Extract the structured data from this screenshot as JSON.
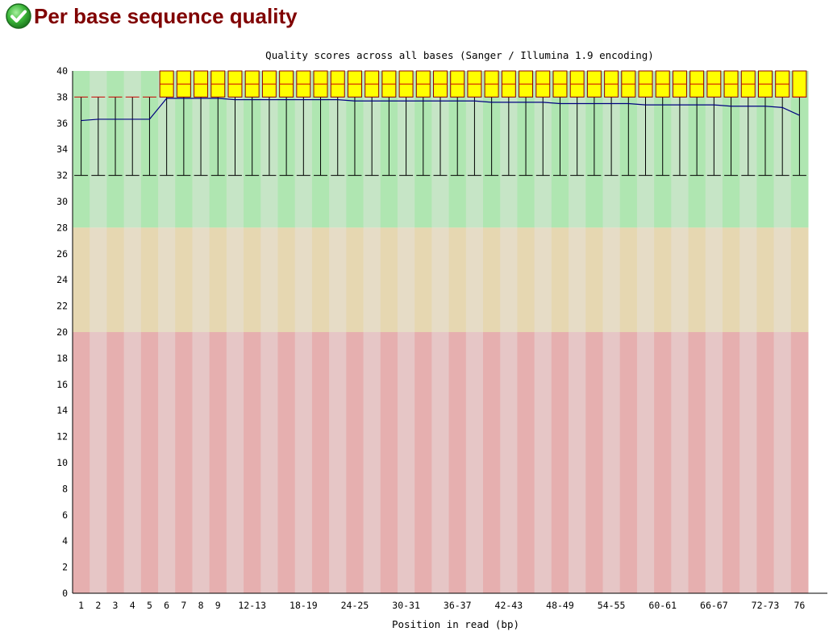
{
  "module": {
    "title": "Per base sequence quality",
    "status_icon": "pass-tick-icon",
    "status": "pass"
  },
  "colors": {
    "title": "#800000",
    "good_dark": "#afe6b1",
    "good_light": "#c6e5c6",
    "warn_dark": "#e6d7b1",
    "warn_light": "#e6dcc6",
    "bad_dark": "#e6afaf",
    "bad_light": "#e6c6c6",
    "box_fill": "#ffff00",
    "box_stroke": "#8b0000",
    "median_line": "#cc0000",
    "mean_line": "#000080",
    "whisker": "#000000"
  },
  "chart_data": {
    "type": "boxplot",
    "title": "Quality scores across all bases (Sanger / Illumina 1.9 encoding)",
    "xlabel": "Position in read (bp)",
    "ylabel": "",
    "ylim": [
      0,
      40
    ],
    "yticks": [
      0,
      2,
      4,
      6,
      8,
      10,
      12,
      14,
      16,
      18,
      20,
      22,
      24,
      26,
      28,
      30,
      32,
      34,
      36,
      38,
      40
    ],
    "zones": [
      {
        "name": "good",
        "from": 28,
        "to": 40
      },
      {
        "name": "warning",
        "from": 20,
        "to": 28
      },
      {
        "name": "poor",
        "from": 0,
        "to": 20
      }
    ],
    "categories": [
      "1",
      "2",
      "3",
      "4",
      "5",
      "6",
      "7",
      "8",
      "9",
      "10-11",
      "12-13",
      "14-15",
      "16-17",
      "18-19",
      "20-21",
      "22-23",
      "24-25",
      "26-27",
      "28-29",
      "30-31",
      "32-33",
      "34-35",
      "36-37",
      "38-39",
      "40-41",
      "42-43",
      "44-45",
      "46-47",
      "48-49",
      "50-51",
      "52-53",
      "54-55",
      "56-57",
      "58-59",
      "60-61",
      "62-63",
      "64-65",
      "66-67",
      "68-69",
      "70-71",
      "72-73",
      "74-75",
      "76"
    ],
    "tick_labels": [
      "1",
      "2",
      "3",
      "4",
      "5",
      "6",
      "7",
      "8",
      "9",
      "",
      "12-13",
      "",
      "",
      "18-19",
      "",
      "",
      "24-25",
      "",
      "",
      "30-31",
      "",
      "",
      "36-37",
      "",
      "",
      "42-43",
      "",
      "",
      "48-49",
      "",
      "",
      "54-55",
      "",
      "",
      "60-61",
      "",
      "",
      "66-67",
      "",
      "",
      "72-73",
      "",
      "76"
    ],
    "median": [
      38,
      38,
      38,
      38,
      38,
      39,
      39,
      39,
      39,
      39,
      39,
      39,
      39,
      39,
      39,
      39,
      39,
      39,
      39,
      39,
      39,
      39,
      39,
      39,
      39,
      39,
      39,
      39,
      39,
      39,
      39,
      39,
      39,
      39,
      39,
      39,
      39,
      39,
      39,
      39,
      39,
      39,
      38
    ],
    "q1": [
      38,
      38,
      38,
      38,
      38,
      38,
      38,
      38,
      38,
      38,
      38,
      38,
      38,
      38,
      38,
      38,
      38,
      38,
      38,
      38,
      38,
      38,
      38,
      38,
      38,
      38,
      38,
      38,
      38,
      38,
      38,
      38,
      38,
      38,
      38,
      38,
      38,
      38,
      38,
      38,
      38,
      38,
      38
    ],
    "q3": [
      38,
      38,
      38,
      38,
      38,
      40,
      40,
      40,
      40,
      40,
      40,
      40,
      40,
      40,
      40,
      40,
      40,
      40,
      40,
      40,
      40,
      40,
      40,
      40,
      40,
      40,
      40,
      40,
      40,
      40,
      40,
      40,
      40,
      40,
      40,
      40,
      40,
      40,
      40,
      40,
      40,
      40,
      40
    ],
    "lower_whisker": [
      32,
      32,
      32,
      32,
      32,
      32,
      32,
      32,
      32,
      32,
      32,
      32,
      32,
      32,
      32,
      32,
      32,
      32,
      32,
      32,
      32,
      32,
      32,
      32,
      32,
      32,
      32,
      32,
      32,
      32,
      32,
      32,
      32,
      32,
      32,
      32,
      32,
      32,
      32,
      32,
      32,
      32,
      32
    ],
    "upper_whisker": [
      38,
      38,
      38,
      38,
      38,
      40,
      40,
      40,
      40,
      40,
      40,
      40,
      40,
      40,
      40,
      40,
      40,
      40,
      40,
      40,
      40,
      40,
      40,
      40,
      40,
      40,
      40,
      40,
      40,
      40,
      40,
      40,
      40,
      40,
      40,
      40,
      40,
      40,
      40,
      40,
      40,
      40,
      40
    ],
    "mean": [
      36.2,
      36.3,
      36.3,
      36.3,
      36.3,
      37.9,
      37.9,
      37.9,
      37.9,
      37.8,
      37.8,
      37.8,
      37.8,
      37.8,
      37.8,
      37.8,
      37.7,
      37.7,
      37.7,
      37.7,
      37.7,
      37.7,
      37.7,
      37.7,
      37.6,
      37.6,
      37.6,
      37.6,
      37.5,
      37.5,
      37.5,
      37.5,
      37.5,
      37.4,
      37.4,
      37.4,
      37.4,
      37.4,
      37.3,
      37.3,
      37.3,
      37.2,
      36.6
    ]
  }
}
